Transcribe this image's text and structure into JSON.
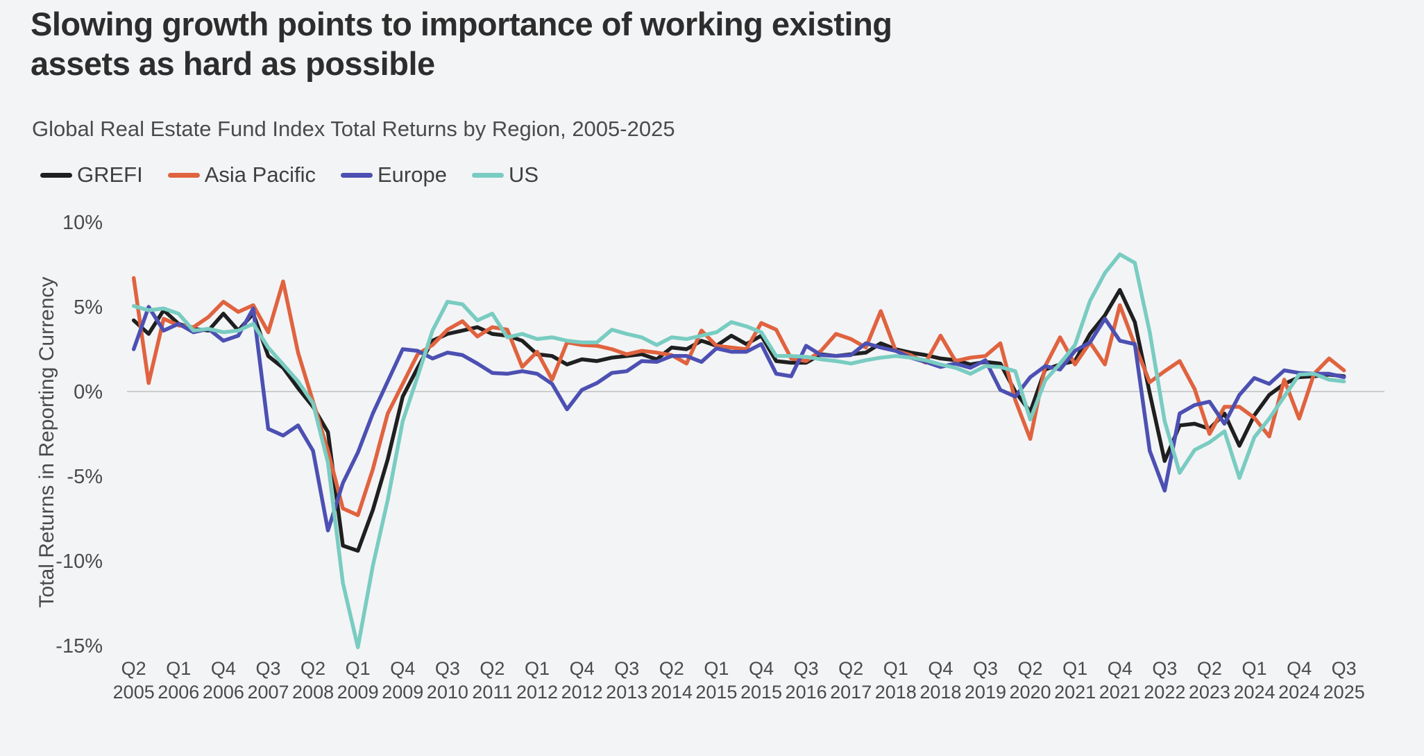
{
  "page": {
    "title_line1": "Slowing growth points to importance of working existing",
    "title_line2": "assets as hard as possible",
    "subtitle": "Global Real Estate Fund Index Total Returns by Region, 2005-2025"
  },
  "colors": {
    "background": "#f3f4f6",
    "gridline": "#cccccc",
    "axis_text": "#4a4a4a",
    "grefi": "#1f1f1f",
    "asia_pacific": "#e0633f",
    "europe": "#4c50b2",
    "us": "#79ccc1"
  },
  "chart_data": {
    "type": "line",
    "title": "Global Real Estate Fund Index Total Returns by Region, 2005-2025",
    "xlabel": "",
    "ylabel": "Total Returns in Reporting Currency",
    "ylim": [
      -15,
      10
    ],
    "grid": "zero-line-only",
    "legend_position": "top-left",
    "y_ticks": [
      {
        "value": 10,
        "label": "10%"
      },
      {
        "value": 5,
        "label": "5%"
      },
      {
        "value": 0,
        "label": "0%"
      },
      {
        "value": -5,
        "label": "-5%"
      },
      {
        "value": -10,
        "label": "-10%"
      },
      {
        "value": -15,
        "label": "-15%"
      }
    ],
    "x_tick_step": 3,
    "quarters": [
      "2005Q2",
      "2005Q3",
      "2005Q4",
      "2006Q1",
      "2006Q2",
      "2006Q3",
      "2006Q4",
      "2007Q1",
      "2007Q2",
      "2007Q3",
      "2007Q4",
      "2008Q1",
      "2008Q2",
      "2008Q3",
      "2008Q4",
      "2009Q1",
      "2009Q2",
      "2009Q3",
      "2009Q4",
      "2010Q1",
      "2010Q2",
      "2010Q3",
      "2010Q4",
      "2011Q1",
      "2011Q2",
      "2011Q3",
      "2011Q4",
      "2012Q1",
      "2012Q2",
      "2012Q3",
      "2012Q4",
      "2013Q1",
      "2013Q2",
      "2013Q3",
      "2013Q4",
      "2014Q1",
      "2014Q2",
      "2014Q3",
      "2014Q4",
      "2015Q1",
      "2015Q2",
      "2015Q3",
      "2015Q4",
      "2016Q1",
      "2016Q2",
      "2016Q3",
      "2016Q4",
      "2017Q1",
      "2017Q2",
      "2017Q3",
      "2017Q4",
      "2018Q1",
      "2018Q2",
      "2018Q3",
      "2018Q4",
      "2019Q1",
      "2019Q2",
      "2019Q3",
      "2019Q4",
      "2020Q1",
      "2020Q2",
      "2020Q3",
      "2020Q4",
      "2021Q1",
      "2021Q2",
      "2021Q3",
      "2021Q4",
      "2022Q1",
      "2022Q2",
      "2022Q3",
      "2022Q4",
      "2023Q1",
      "2023Q2",
      "2023Q3",
      "2023Q4",
      "2024Q1",
      "2024Q2",
      "2024Q3",
      "2024Q4",
      "2025Q1",
      "2025Q2",
      "2025Q3"
    ],
    "series": [
      {
        "name": "GREFI",
        "color": "#1f1f1f",
        "values": [
          4.2,
          3.4,
          4.8,
          4.0,
          3.7,
          3.6,
          4.6,
          3.6,
          4.6,
          2.1,
          1.4,
          0.2,
          -0.9,
          -2.4,
          -9.1,
          -9.4,
          -7.0,
          -4.0,
          -0.3,
          1.4,
          3.0,
          3.4,
          3.6,
          3.8,
          3.4,
          3.3,
          3.0,
          2.2,
          2.1,
          1.6,
          1.9,
          1.8,
          2.0,
          2.1,
          2.2,
          1.9,
          2.6,
          2.5,
          3.0,
          2.7,
          3.3,
          2.8,
          3.3,
          1.8,
          1.7,
          1.7,
          2.2,
          2.1,
          2.2,
          2.3,
          2.85,
          2.5,
          2.3,
          2.15,
          1.95,
          1.85,
          1.6,
          1.75,
          1.65,
          0.0,
          -1.2,
          1.3,
          1.6,
          1.8,
          3.4,
          4.5,
          6.0,
          4.1,
          -0.1,
          -4.1,
          -2.0,
          -1.9,
          -2.2,
          -1.3,
          -3.2,
          -1.4,
          -0.2,
          0.45,
          0.85,
          0.9,
          1.0,
          0.9
        ]
      },
      {
        "name": "Asia Pacific",
        "color": "#e0633f",
        "values": [
          6.7,
          0.5,
          4.3,
          3.9,
          3.8,
          4.4,
          5.3,
          4.7,
          5.1,
          3.5,
          6.5,
          2.3,
          -0.6,
          -3.5,
          -6.9,
          -7.3,
          -4.6,
          -1.3,
          0.45,
          2.2,
          2.75,
          3.65,
          4.15,
          3.25,
          3.8,
          3.65,
          1.45,
          2.35,
          0.7,
          2.9,
          2.75,
          2.7,
          2.5,
          2.2,
          2.4,
          2.3,
          2.15,
          1.65,
          3.6,
          2.7,
          2.6,
          2.5,
          4.05,
          3.65,
          1.95,
          1.8,
          2.4,
          3.4,
          3.1,
          2.6,
          4.75,
          2.4,
          2.15,
          1.7,
          3.3,
          1.8,
          2.0,
          2.1,
          2.85,
          -0.5,
          -2.8,
          1.5,
          3.2,
          1.6,
          2.9,
          1.6,
          5.1,
          2.75,
          0.55,
          1.2,
          1.8,
          0.15,
          -2.5,
          -0.9,
          -0.9,
          -1.55,
          -2.65,
          0.7,
          -1.6,
          1.05,
          1.95,
          1.25
        ]
      },
      {
        "name": "Europe",
        "color": "#4c50b2",
        "values": [
          2.5,
          5.0,
          3.6,
          4.0,
          3.5,
          3.7,
          3.0,
          3.3,
          4.9,
          -2.2,
          -2.6,
          -2.0,
          -3.5,
          -8.2,
          -5.4,
          -3.6,
          -1.3,
          0.6,
          2.5,
          2.4,
          1.95,
          2.3,
          2.15,
          1.65,
          1.1,
          1.05,
          1.2,
          1.05,
          0.45,
          -1.05,
          0.1,
          0.5,
          1.1,
          1.2,
          1.8,
          1.75,
          2.1,
          2.1,
          1.75,
          2.55,
          2.35,
          2.35,
          2.8,
          1.05,
          0.9,
          2.7,
          2.15,
          2.1,
          2.15,
          2.85,
          2.6,
          2.4,
          2.0,
          1.75,
          1.45,
          1.65,
          1.4,
          1.85,
          0.1,
          -0.3,
          0.85,
          1.5,
          1.3,
          2.4,
          2.9,
          4.3,
          3.0,
          2.8,
          -3.5,
          -5.85,
          -1.3,
          -0.8,
          -0.6,
          -1.9,
          -0.2,
          0.8,
          0.45,
          1.25,
          1.1,
          1.05,
          1.05,
          0.85
        ]
      },
      {
        "name": "US",
        "color": "#79ccc1",
        "values": [
          5.05,
          4.8,
          4.9,
          4.6,
          3.6,
          3.7,
          3.5,
          3.6,
          4.0,
          2.6,
          1.6,
          0.6,
          -0.7,
          -4.2,
          -11.3,
          -15.1,
          -10.3,
          -6.4,
          -1.75,
          0.9,
          3.6,
          5.3,
          5.15,
          4.2,
          4.6,
          3.2,
          3.4,
          3.1,
          3.2,
          3.0,
          2.9,
          2.9,
          3.65,
          3.4,
          3.2,
          2.75,
          3.2,
          3.1,
          3.3,
          3.5,
          4.1,
          3.85,
          3.5,
          2.1,
          2.1,
          2.05,
          1.9,
          1.8,
          1.65,
          1.85,
          2.0,
          2.1,
          2.0,
          1.85,
          1.6,
          1.4,
          1.05,
          1.5,
          1.45,
          1.2,
          -1.65,
          0.65,
          1.65,
          2.75,
          5.35,
          7.0,
          8.1,
          7.6,
          3.5,
          -1.75,
          -4.8,
          -3.45,
          -3.0,
          -2.35,
          -5.1,
          -2.7,
          -1.6,
          -0.3,
          1.0,
          1.05,
          0.7,
          0.6
        ]
      }
    ]
  }
}
